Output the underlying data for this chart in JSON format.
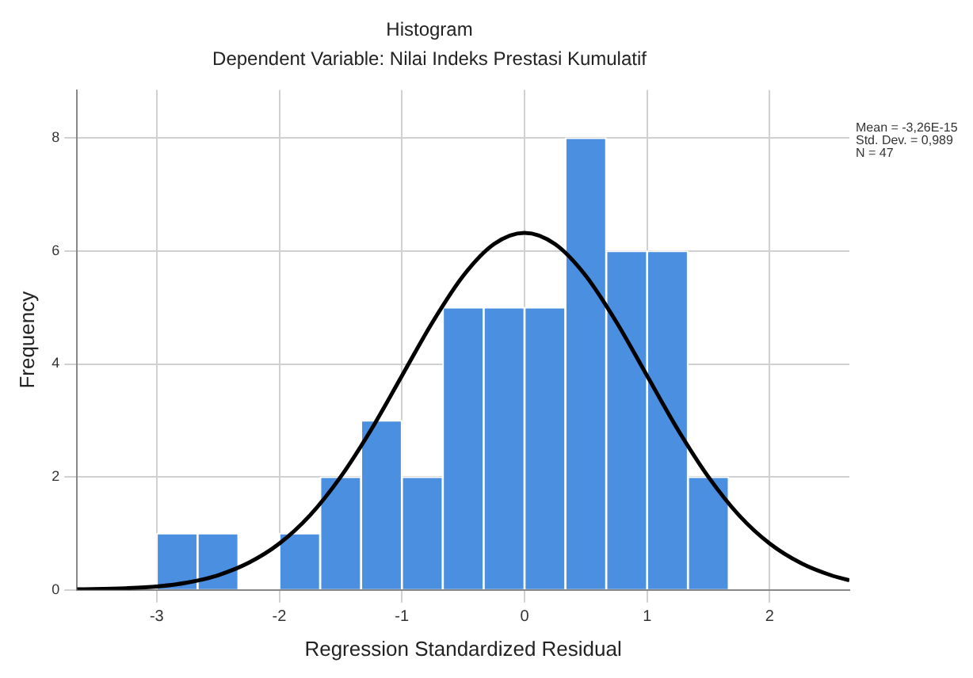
{
  "chart_data": {
    "type": "histogram",
    "title": "Histogram",
    "subtitle": "Dependent Variable: Nilai Indeks Prestasi Kumulatif",
    "xlabel": "Regression Standardized Residual",
    "ylabel": "Frequency",
    "annotations": [
      "Mean = -3,26E-15",
      "Std. Dev. = 0,989",
      "N = 47"
    ],
    "series": [
      {
        "color": "#4a8fe0",
        "bins": [
          -3,
          -2.667,
          -2.333,
          -2,
          -1.667,
          -1.333,
          -1,
          -0.667,
          -0.333,
          0,
          0.333,
          0.667,
          1,
          1.333,
          1.667
        ],
        "values": [
          1,
          1,
          0,
          1,
          2,
          3,
          2,
          5,
          5,
          5,
          8,
          6,
          6,
          2
        ]
      },
      {
        "type": "line",
        "color": "#000000",
        "x": [
          -3.65,
          -3.25,
          -3,
          -2.75,
          -2.5,
          -2.25,
          -2,
          -1.75,
          -1.5,
          -1.25,
          -1,
          -0.75,
          -0.5,
          -0.25,
          0,
          0.25,
          0.5,
          0.75,
          1,
          1.25,
          1.5,
          1.75,
          2,
          2.25,
          2.5,
          2.65
        ],
        "values": [
          0.01,
          0.03,
          0.06,
          0.13,
          0.26,
          0.48,
          0.82,
          1.32,
          2,
          2.84,
          3.79,
          4.74,
          5.56,
          6.12,
          6.32,
          6.12,
          5.56,
          4.74,
          3.79,
          2.84,
          2,
          1.32,
          0.82,
          0.48,
          0.26,
          0.17
        ]
      }
    ],
    "marker": "none",
    "line_style": "solid",
    "xlim": [
      -3.65,
      2.65
    ],
    "xticks": [
      -3,
      -2,
      -1,
      0,
      1,
      2
    ],
    "ylim": [
      0,
      8.85
    ],
    "yticks": [
      0,
      2,
      4,
      6,
      8
    ],
    "grid": true,
    "legend": false
  }
}
